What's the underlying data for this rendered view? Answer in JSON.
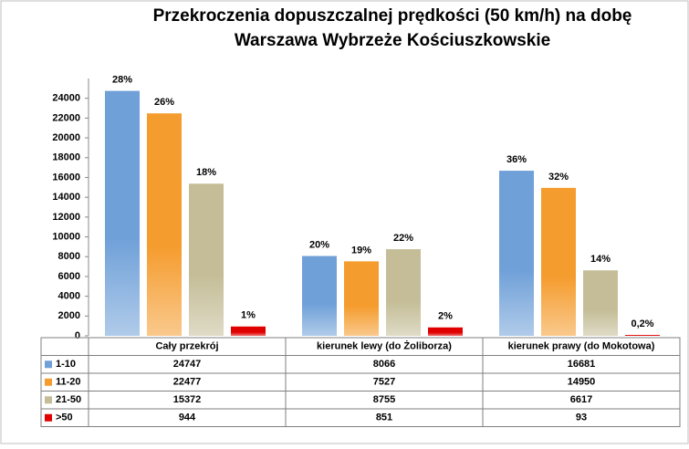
{
  "chart_data": {
    "type": "bar",
    "title": "Przekroczenia dopuszczalnej prędkości (50 km/h) na dobę",
    "subtitle": "Warszawa Wybrzeże Kościuszkowskie",
    "categories": [
      "Cały przekrój",
      "kierunek lewy (do Żoliborza)",
      "kierunek prawy (do Mokotowa)"
    ],
    "series": [
      {
        "name": "1-10",
        "color": "#6fa0d8",
        "values": [
          24747,
          8066,
          16681
        ],
        "share_labels": [
          "28%",
          "20%",
          "36%"
        ]
      },
      {
        "name": "11-20",
        "color": "#f59c2e",
        "values": [
          22477,
          7527,
          14950
        ],
        "share_labels": [
          "26%",
          "19%",
          "32%"
        ]
      },
      {
        "name": "21-50",
        "color": "#c4bd97",
        "values": [
          15372,
          8755,
          6617
        ],
        "share_labels": [
          "18%",
          "22%",
          "14%"
        ]
      },
      {
        "name": ">50",
        "color": "#e00000",
        "values": [
          944,
          851,
          93
        ],
        "share_labels": [
          "1%",
          "2%",
          "0,2%"
        ]
      }
    ],
    "ylim": [
      0,
      26000
    ],
    "yticks": [
      0,
      2000,
      4000,
      6000,
      8000,
      10000,
      12000,
      14000,
      16000,
      18000,
      20000,
      22000,
      24000
    ],
    "grid": false
  }
}
